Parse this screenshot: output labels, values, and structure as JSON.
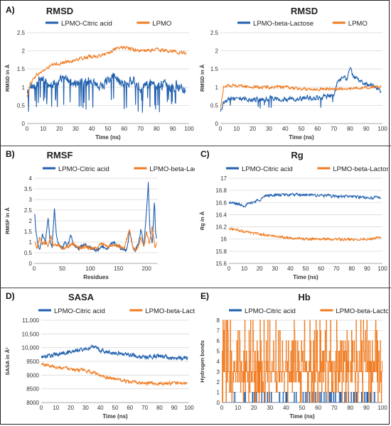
{
  "chart_data": [
    {
      "type": "line",
      "panel_label": "A)",
      "title": "RMSD",
      "xlabel": "Time (ns)",
      "ylabel": "RMSD in Å",
      "xlim": [
        0,
        100
      ],
      "ylim": [
        0,
        2.5
      ],
      "xticks": [
        0,
        10,
        20,
        30,
        40,
        50,
        60,
        70,
        80,
        90,
        100
      ],
      "yticks": [
        0,
        0.5,
        1,
        1.5,
        2,
        2.5
      ],
      "ytick_labels": [
        "0",
        "0.5",
        "1",
        "1.5",
        "2",
        "2.5"
      ],
      "grid": true,
      "legend": "top",
      "series": [
        {
          "name": "LPMO-Citric acid",
          "color": "#1f5fae",
          "x": [
            0,
            2,
            5,
            10,
            15,
            20,
            25,
            30,
            35,
            40,
            45,
            50,
            55,
            60,
            65,
            70,
            75,
            80,
            85,
            90,
            95,
            98
          ],
          "y": [
            0.8,
            1.0,
            1.1,
            1.2,
            1.1,
            1.15,
            1.2,
            1.1,
            1.1,
            1.2,
            1.0,
            1.2,
            1.25,
            1.1,
            1.15,
            1.0,
            1.1,
            0.95,
            1.1,
            1.0,
            1.05,
            0.9
          ],
          "noise": 0.22,
          "spikes": 0.1,
          "spike_depth": 0.75
        },
        {
          "name": "LPMO",
          "color": "#f07b20",
          "x": [
            0,
            2,
            5,
            10,
            15,
            20,
            25,
            30,
            35,
            40,
            45,
            50,
            55,
            60,
            65,
            70,
            75,
            80,
            85,
            90,
            95,
            98
          ],
          "y": [
            0.7,
            1.1,
            1.3,
            1.45,
            1.6,
            1.65,
            1.7,
            1.75,
            1.8,
            1.85,
            1.85,
            1.95,
            2.05,
            2.1,
            2.05,
            2.0,
            2.0,
            2.05,
            2.0,
            2.0,
            1.95,
            1.95
          ],
          "noise": 0.07,
          "spikes": 0.0,
          "spike_depth": 0
        }
      ]
    },
    {
      "type": "line",
      "panel_label": "",
      "title": "RMSD",
      "xlabel": "Time (ns)",
      "ylabel": "RMSD in Å",
      "xlim": [
        0,
        100
      ],
      "ylim": [
        0,
        2.5
      ],
      "xticks": [
        0,
        10,
        20,
        30,
        40,
        50,
        60,
        70,
        80,
        90,
        100
      ],
      "yticks": [
        0,
        0.5,
        1,
        1.5,
        2,
        2.5
      ],
      "ytick_labels": [
        "0",
        "0.5",
        "1",
        "1.5",
        "2",
        "2.5"
      ],
      "grid": true,
      "legend": "top",
      "series": [
        {
          "name": "LPMO-beta-Lactose",
          "color": "#1f5fae",
          "x": [
            0,
            2,
            5,
            10,
            20,
            30,
            40,
            50,
            60,
            65,
            70,
            72,
            75,
            78,
            80,
            82,
            85,
            90,
            95,
            99
          ],
          "y": [
            0.3,
            0.6,
            0.65,
            0.7,
            0.65,
            0.7,
            0.65,
            0.7,
            0.7,
            0.75,
            0.8,
            1.1,
            1.3,
            1.2,
            1.5,
            1.3,
            1.2,
            1.1,
            1.0,
            0.9
          ],
          "noise": 0.1,
          "spikes": 0.03,
          "spike_depth": 0.3
        },
        {
          "name": "LPMO",
          "color": "#f07b20",
          "x": [
            0,
            2,
            5,
            10,
            20,
            30,
            40,
            50,
            60,
            70,
            80,
            90,
            99
          ],
          "y": [
            0.4,
            1.0,
            1.05,
            1.05,
            1.0,
            1.0,
            1.0,
            0.95,
            0.95,
            0.95,
            0.95,
            1.0,
            1.0
          ],
          "noise": 0.06,
          "spikes": 0.0,
          "spike_depth": 0
        }
      ]
    },
    {
      "type": "line",
      "panel_label": "B)",
      "title": "RMSF",
      "xlabel": "Residues",
      "ylabel": "RMSF in Å",
      "xlim": [
        0,
        220
      ],
      "ylim": [
        0,
        4
      ],
      "xticks": [
        0,
        50,
        100,
        150,
        200
      ],
      "yticks": [
        0,
        0.5,
        1,
        1.5,
        2,
        2.5,
        3,
        3.5,
        4
      ],
      "ytick_labels": [
        "0",
        "0.5",
        "1",
        "1.5",
        "2",
        "2.5",
        "3",
        "3.5",
        "4"
      ],
      "grid": true,
      "legend": "top",
      "series": [
        {
          "name": "LPMO-Citric acid",
          "color": "#1f5fae",
          "x": [
            1,
            3,
            6,
            10,
            15,
            20,
            25,
            28,
            32,
            36,
            40,
            45,
            50,
            55,
            60,
            65,
            70,
            75,
            80,
            90,
            100,
            110,
            120,
            130,
            140,
            150,
            160,
            165,
            170,
            175,
            180,
            185,
            190,
            195,
            200,
            203,
            206,
            210,
            214,
            216,
            218
          ],
          "y": [
            2.3,
            1.6,
            1.0,
            0.7,
            1.4,
            0.9,
            2.2,
            1.1,
            0.8,
            2.6,
            1.2,
            0.8,
            0.7,
            1.0,
            0.8,
            1.4,
            0.9,
            0.8,
            0.7,
            0.9,
            0.7,
            0.6,
            0.8,
            0.7,
            1.0,
            0.8,
            0.6,
            0.7,
            1.5,
            0.8,
            0.6,
            0.9,
            1.6,
            0.8,
            2.5,
            3.8,
            1.6,
            0.9,
            2.9,
            1.4,
            1.1
          ],
          "noise": 0.12,
          "spikes": 0.0,
          "spike_depth": 0
        },
        {
          "name": "LPMO-beta-Lactose",
          "color": "#f07b20",
          "x": [
            1,
            5,
            10,
            15,
            20,
            25,
            30,
            35,
            40,
            50,
            60,
            70,
            80,
            90,
            100,
            110,
            120,
            130,
            140,
            150,
            160,
            170,
            175,
            180,
            185,
            190,
            195,
            200,
            205,
            210,
            215,
            218
          ],
          "y": [
            1.0,
            0.7,
            1.2,
            0.9,
            1.0,
            0.8,
            1.3,
            0.8,
            0.9,
            0.7,
            0.8,
            0.9,
            0.7,
            0.8,
            0.7,
            0.7,
            0.9,
            0.8,
            0.9,
            0.8,
            0.7,
            1.6,
            0.8,
            0.6,
            0.8,
            1.2,
            0.8,
            1.5,
            0.9,
            1.7,
            0.8,
            0.9
          ],
          "noise": 0.12,
          "spikes": 0.0,
          "spike_depth": 0
        }
      ]
    },
    {
      "type": "line",
      "panel_label": "C)",
      "title": "Rg",
      "xlabel": "Time (ns)",
      "ylabel": "Rg in Å",
      "xlim": [
        0,
        100
      ],
      "ylim": [
        15.6,
        17
      ],
      "xticks": [
        0,
        10,
        20,
        30,
        40,
        50,
        60,
        70,
        80,
        90,
        100
      ],
      "yticks": [
        15.6,
        15.8,
        16,
        16.2,
        16.4,
        16.6,
        16.8,
        17
      ],
      "ytick_labels": [
        "15.6",
        "15.8",
        "16",
        "16.2",
        "16.4",
        "16.6",
        "16.8",
        "17"
      ],
      "grid": true,
      "legend": "top",
      "series": [
        {
          "name": "LPMO-Citric acid",
          "color": "#1f5fae",
          "x": [
            0,
            5,
            10,
            15,
            20,
            25,
            30,
            40,
            50,
            60,
            70,
            80,
            90,
            99
          ],
          "y": [
            16.6,
            16.58,
            16.55,
            16.6,
            16.65,
            16.72,
            16.72,
            16.73,
            16.72,
            16.72,
            16.7,
            16.7,
            16.68,
            16.68
          ],
          "noise": 0.035,
          "spikes": 0.0,
          "spike_depth": 0
        },
        {
          "name": "LPMO-beta-Lactose",
          "color": "#f07b20",
          "x": [
            0,
            5,
            10,
            15,
            20,
            30,
            40,
            50,
            60,
            70,
            80,
            90,
            99
          ],
          "y": [
            16.18,
            16.15,
            16.12,
            16.1,
            16.08,
            16.05,
            16.02,
            16.0,
            16.0,
            16.0,
            15.99,
            16.0,
            16.03
          ],
          "noise": 0.03,
          "spikes": 0.0,
          "spike_depth": 0
        }
      ]
    },
    {
      "type": "line",
      "panel_label": "D)",
      "title": "SASA",
      "xlabel": "Time (ns)",
      "ylabel": "SASA in Å²",
      "xlim": [
        0,
        100
      ],
      "ylim": [
        8000,
        11000
      ],
      "xticks": [
        0,
        10,
        20,
        30,
        40,
        50,
        60,
        70,
        80,
        90,
        100
      ],
      "yticks": [
        8000,
        8500,
        9000,
        9500,
        10000,
        10500,
        11000
      ],
      "ytick_labels": [
        "8000",
        "8500",
        "9000",
        "9500",
        "10,000",
        "10,500",
        "11,000"
      ],
      "grid": true,
      "legend": "top",
      "series": [
        {
          "name": "LPMO-Citric acid",
          "color": "#1f5fae",
          "x": [
            0,
            5,
            10,
            20,
            30,
            35,
            40,
            50,
            60,
            70,
            80,
            90,
            99
          ],
          "y": [
            9650,
            9700,
            9750,
            9850,
            9950,
            10050,
            9900,
            9800,
            9750,
            9650,
            9700,
            9600,
            9650
          ],
          "noise": 120,
          "spikes": 0.0,
          "spike_depth": 0
        },
        {
          "name": "LPMO-beta-Lactose",
          "color": "#f07b20",
          "x": [
            0,
            5,
            10,
            20,
            30,
            35,
            40,
            50,
            60,
            70,
            80,
            90,
            99
          ],
          "y": [
            9400,
            9350,
            9300,
            9250,
            9150,
            9100,
            9000,
            8850,
            8750,
            8700,
            8700,
            8700,
            8700
          ],
          "noise": 90,
          "spikes": 0.0,
          "spike_depth": 0
        }
      ]
    },
    {
      "type": "line",
      "panel_label": "E)",
      "title": "Hb",
      "xlabel": "Time (ns)",
      "ylabel": "Hydrogen bonds",
      "xlim": [
        0,
        100
      ],
      "ylim": [
        0,
        8
      ],
      "xticks": [
        0,
        10,
        20,
        30,
        40,
        50,
        60,
        70,
        80,
        90,
        100
      ],
      "yticks": [
        0,
        1,
        2,
        3,
        4,
        5,
        6,
        7,
        8
      ],
      "ytick_labels": [
        "0",
        "1",
        "2",
        "3",
        "4",
        "5",
        "6",
        "7",
        "8"
      ],
      "grid": true,
      "legend": "top",
      "series": [
        {
          "name": "LPMO-Citric acid",
          "color": "#1f5fae",
          "x": [
            0,
            100
          ],
          "y": [
            0,
            0
          ],
          "discrete": true,
          "levels": [
            0,
            0,
            0,
            0,
            0,
            0,
            0,
            1
          ],
          "spikes": 0.0,
          "noise": 0,
          "spike_depth": 0
        },
        {
          "name": "LPMO-beta-Lactose",
          "color": "#f07b20",
          "x": [
            0,
            100
          ],
          "y": [
            3,
            3
          ],
          "discrete": true,
          "levels": [
            1,
            2,
            2,
            3,
            3,
            3,
            3,
            4,
            4,
            5,
            0,
            6,
            7,
            8
          ],
          "spikes": 0.0,
          "noise": 0,
          "spike_depth": 0
        }
      ]
    }
  ]
}
